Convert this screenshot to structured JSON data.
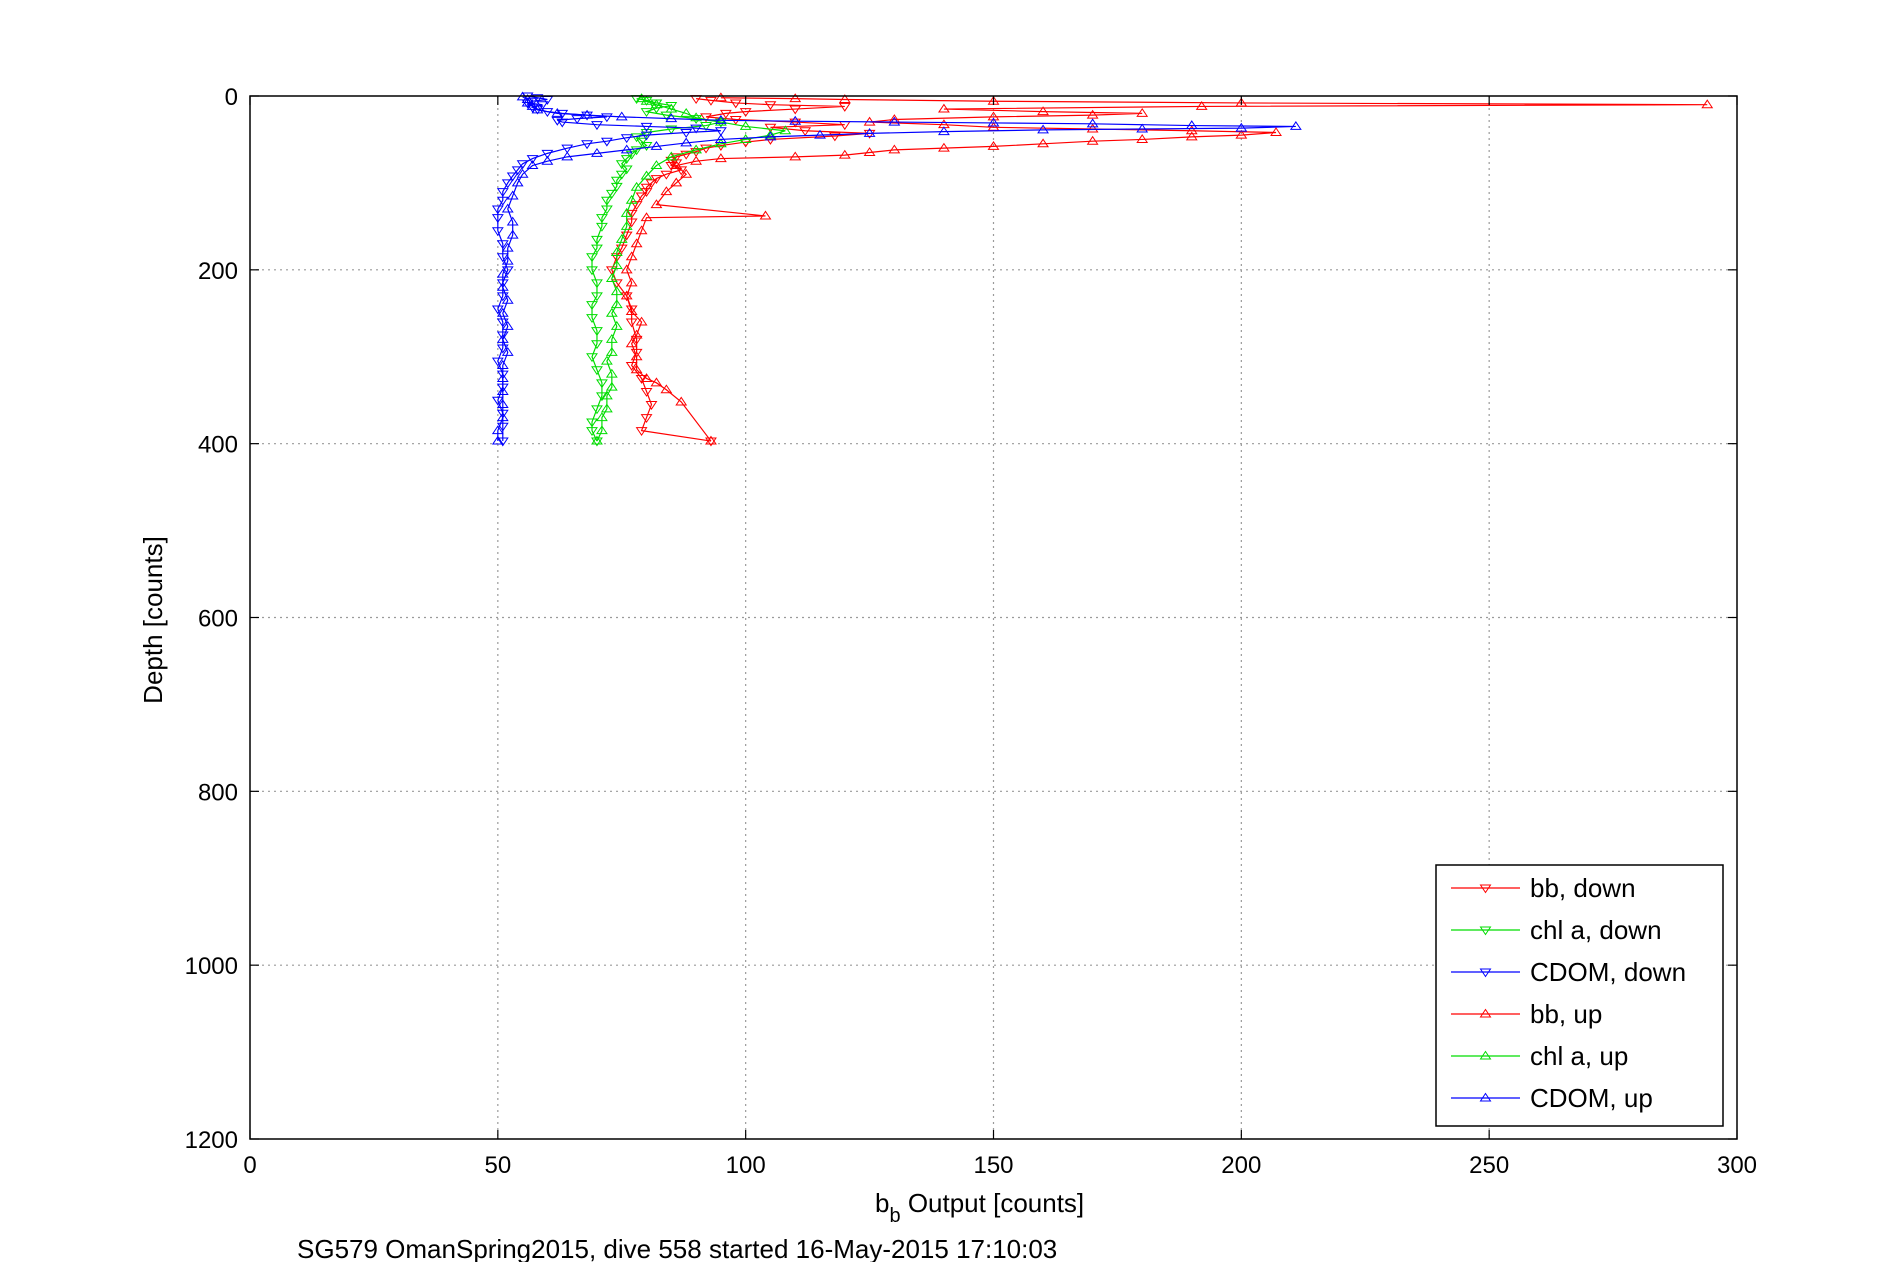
{
  "chart_data": {
    "type": "line",
    "xlabel_main": "b",
    "xlabel_sub": "b",
    "xlabel_rest": " Output [counts]",
    "ylabel": "Depth [counts]",
    "caption": "SG579 OmanSpring2015, dive 558 started 16-May-2015 17:10:03",
    "xlim": [
      0,
      300
    ],
    "ylim": [
      0,
      1200
    ],
    "y_reversed": true,
    "grid": true,
    "legend_position": "bottom-right",
    "x_ticks": [
      0,
      50,
      100,
      150,
      200,
      250,
      300
    ],
    "y_ticks": [
      0,
      200,
      400,
      600,
      800,
      1000,
      1200
    ],
    "series": [
      {
        "name": "bb, down",
        "color": "#ff0000",
        "marker": "triangle-down",
        "points": [
          [
            90,
            3
          ],
          [
            93,
            5
          ],
          [
            98,
            8
          ],
          [
            105,
            10
          ],
          [
            120,
            12
          ],
          [
            110,
            15
          ],
          [
            100,
            18
          ],
          [
            96,
            20
          ],
          [
            92,
            24
          ],
          [
            98,
            27
          ],
          [
            110,
            30
          ],
          [
            120,
            33
          ],
          [
            105,
            36
          ],
          [
            112,
            40
          ],
          [
            125,
            43
          ],
          [
            118,
            46
          ],
          [
            105,
            50
          ],
          [
            100,
            53
          ],
          [
            95,
            57
          ],
          [
            92,
            60
          ],
          [
            90,
            64
          ],
          [
            88,
            67
          ],
          [
            86,
            70
          ],
          [
            85,
            74
          ],
          [
            86,
            77
          ],
          [
            85,
            80
          ],
          [
            87,
            85
          ],
          [
            84,
            90
          ],
          [
            82,
            95
          ],
          [
            81,
            100
          ],
          [
            80,
            105
          ],
          [
            80,
            110
          ],
          [
            79,
            115
          ],
          [
            78,
            125
          ],
          [
            77,
            135
          ],
          [
            77,
            145
          ],
          [
            76,
            160
          ],
          [
            75,
            175
          ],
          [
            74,
            185
          ],
          [
            73,
            200
          ],
          [
            74,
            215
          ],
          [
            76,
            230
          ],
          [
            77,
            245
          ],
          [
            77,
            260
          ],
          [
            78,
            280
          ],
          [
            78,
            295
          ],
          [
            77,
            310
          ],
          [
            79,
            325
          ],
          [
            80,
            340
          ],
          [
            81,
            355
          ],
          [
            80,
            370
          ],
          [
            79,
            385
          ],
          [
            93,
            397
          ]
        ]
      },
      {
        "name": "chl a, down",
        "color": "#00dd00",
        "marker": "triangle-down",
        "points": [
          [
            78,
            3
          ],
          [
            80,
            5
          ],
          [
            82,
            8
          ],
          [
            85,
            11
          ],
          [
            82,
            14
          ],
          [
            80,
            18
          ],
          [
            84,
            22
          ],
          [
            90,
            26
          ],
          [
            95,
            30
          ],
          [
            92,
            34
          ],
          [
            85,
            38
          ],
          [
            80,
            42
          ],
          [
            78,
            47
          ],
          [
            79,
            52
          ],
          [
            80,
            57
          ],
          [
            78,
            62
          ],
          [
            77,
            67
          ],
          [
            76,
            72
          ],
          [
            75,
            78
          ],
          [
            76,
            84
          ],
          [
            75,
            90
          ],
          [
            74,
            97
          ],
          [
            74,
            104
          ],
          [
            73,
            112
          ],
          [
            72,
            120
          ],
          [
            72,
            130
          ],
          [
            71,
            140
          ],
          [
            71,
            150
          ],
          [
            70,
            165
          ],
          [
            70,
            175
          ],
          [
            69,
            185
          ],
          [
            69,
            200
          ],
          [
            70,
            215
          ],
          [
            70,
            230
          ],
          [
            69,
            240
          ],
          [
            69,
            255
          ],
          [
            70,
            270
          ],
          [
            70,
            285
          ],
          [
            69,
            300
          ],
          [
            70,
            315
          ],
          [
            71,
            330
          ],
          [
            71,
            345
          ],
          [
            70,
            360
          ],
          [
            69,
            375
          ],
          [
            69,
            385
          ],
          [
            70,
            397
          ]
        ]
      },
      {
        "name": "CDOM, down",
        "color": "#0000ff",
        "marker": "triangle-down",
        "points": [
          [
            56,
            0
          ],
          [
            58,
            2
          ],
          [
            60,
            4
          ],
          [
            57,
            6
          ],
          [
            56,
            8
          ],
          [
            59,
            10
          ],
          [
            57,
            13
          ],
          [
            58,
            15
          ],
          [
            60,
            18
          ],
          [
            63,
            20
          ],
          [
            68,
            22
          ],
          [
            72,
            24
          ],
          [
            66,
            26
          ],
          [
            62,
            28
          ],
          [
            63,
            30
          ],
          [
            70,
            33
          ],
          [
            80,
            35
          ],
          [
            90,
            37
          ],
          [
            95,
            40
          ],
          [
            88,
            42
          ],
          [
            80,
            45
          ],
          [
            76,
            48
          ],
          [
            72,
            52
          ],
          [
            68,
            55
          ],
          [
            64,
            60
          ],
          [
            60,
            66
          ],
          [
            57,
            72
          ],
          [
            55,
            78
          ],
          [
            54,
            85
          ],
          [
            53,
            92
          ],
          [
            52,
            100
          ],
          [
            51,
            110
          ],
          [
            51,
            120
          ],
          [
            50,
            130
          ],
          [
            50,
            140
          ],
          [
            50,
            155
          ],
          [
            51,
            170
          ],
          [
            51,
            185
          ],
          [
            52,
            200
          ],
          [
            51,
            215
          ],
          [
            51,
            230
          ],
          [
            50,
            245
          ],
          [
            51,
            260
          ],
          [
            51,
            275
          ],
          [
            51,
            290
          ],
          [
            50,
            305
          ],
          [
            51,
            320
          ],
          [
            51,
            335
          ],
          [
            50,
            350
          ],
          [
            51,
            365
          ],
          [
            51,
            380
          ],
          [
            51,
            397
          ]
        ]
      },
      {
        "name": "bb, up",
        "color": "#ff0000",
        "marker": "triangle-up",
        "points": [
          [
            93,
            397
          ],
          [
            87,
            352
          ],
          [
            84,
            338
          ],
          [
            82,
            330
          ],
          [
            80,
            325
          ],
          [
            78,
            315
          ],
          [
            78,
            300
          ],
          [
            77,
            285
          ],
          [
            78,
            275
          ],
          [
            79,
            260
          ],
          [
            77,
            248
          ],
          [
            76,
            230
          ],
          [
            77,
            215
          ],
          [
            76,
            200
          ],
          [
            77,
            185
          ],
          [
            78,
            170
          ],
          [
            79,
            155
          ],
          [
            80,
            140
          ],
          [
            104,
            138
          ],
          [
            82,
            125
          ],
          [
            84,
            110
          ],
          [
            86,
            100
          ],
          [
            88,
            90
          ],
          [
            86,
            80
          ],
          [
            90,
            75
          ],
          [
            95,
            72
          ],
          [
            110,
            70
          ],
          [
            120,
            68
          ],
          [
            125,
            65
          ],
          [
            130,
            62
          ],
          [
            140,
            60
          ],
          [
            150,
            58
          ],
          [
            160,
            55
          ],
          [
            170,
            52
          ],
          [
            180,
            50
          ],
          [
            190,
            47
          ],
          [
            200,
            45
          ],
          [
            207,
            42
          ],
          [
            190,
            40
          ],
          [
            170,
            38
          ],
          [
            150,
            36
          ],
          [
            140,
            33
          ],
          [
            125,
            30
          ],
          [
            130,
            27
          ],
          [
            150,
            24
          ],
          [
            170,
            22
          ],
          [
            180,
            20
          ],
          [
            160,
            18
          ],
          [
            140,
            15
          ],
          [
            192,
            12
          ],
          [
            294,
            10
          ],
          [
            200,
            8
          ],
          [
            150,
            6
          ],
          [
            120,
            4
          ],
          [
            110,
            3
          ],
          [
            95,
            2
          ]
        ]
      },
      {
        "name": "chl a, up",
        "color": "#00dd00",
        "marker": "triangle-up",
        "points": [
          [
            70,
            397
          ],
          [
            71,
            385
          ],
          [
            71,
            370
          ],
          [
            72,
            360
          ],
          [
            72,
            345
          ],
          [
            73,
            335
          ],
          [
            73,
            320
          ],
          [
            72,
            305
          ],
          [
            73,
            295
          ],
          [
            73,
            280
          ],
          [
            74,
            265
          ],
          [
            73,
            250
          ],
          [
            74,
            240
          ],
          [
            74,
            225
          ],
          [
            73,
            210
          ],
          [
            74,
            195
          ],
          [
            74,
            180
          ],
          [
            75,
            165
          ],
          [
            76,
            150
          ],
          [
            76,
            135
          ],
          [
            77,
            120
          ],
          [
            78,
            105
          ],
          [
            80,
            92
          ],
          [
            82,
            80
          ],
          [
            85,
            70
          ],
          [
            90,
            62
          ],
          [
            95,
            55
          ],
          [
            100,
            50
          ],
          [
            105,
            45
          ],
          [
            108,
            40
          ],
          [
            100,
            35
          ],
          [
            95,
            30
          ],
          [
            90,
            25
          ],
          [
            88,
            20
          ],
          [
            85,
            15
          ],
          [
            82,
            10
          ],
          [
            80,
            6
          ],
          [
            79,
            3
          ]
        ]
      },
      {
        "name": "CDOM, up",
        "color": "#0000ff",
        "marker": "triangle-up",
        "points": [
          [
            50,
            397
          ],
          [
            50,
            385
          ],
          [
            51,
            370
          ],
          [
            51,
            355
          ],
          [
            51,
            340
          ],
          [
            51,
            325
          ],
          [
            51,
            310
          ],
          [
            52,
            295
          ],
          [
            51,
            280
          ],
          [
            52,
            265
          ],
          [
            51,
            250
          ],
          [
            52,
            235
          ],
          [
            51,
            220
          ],
          [
            51,
            205
          ],
          [
            52,
            190
          ],
          [
            52,
            175
          ],
          [
            53,
            160
          ],
          [
            53,
            145
          ],
          [
            52,
            130
          ],
          [
            53,
            115
          ],
          [
            54,
            100
          ],
          [
            55,
            90
          ],
          [
            57,
            80
          ],
          [
            60,
            75
          ],
          [
            64,
            70
          ],
          [
            70,
            66
          ],
          [
            76,
            62
          ],
          [
            82,
            58
          ],
          [
            88,
            54
          ],
          [
            95,
            50
          ],
          [
            105,
            47
          ],
          [
            115,
            45
          ],
          [
            125,
            43
          ],
          [
            140,
            41
          ],
          [
            160,
            39
          ],
          [
            180,
            38
          ],
          [
            200,
            37
          ],
          [
            211,
            35
          ],
          [
            190,
            34
          ],
          [
            170,
            32
          ],
          [
            150,
            31
          ],
          [
            130,
            30
          ],
          [
            110,
            29
          ],
          [
            95,
            28
          ],
          [
            85,
            26
          ],
          [
            75,
            24
          ],
          [
            68,
            22
          ],
          [
            62,
            20
          ],
          [
            58,
            16
          ],
          [
            57,
            12
          ],
          [
            56,
            8
          ],
          [
            56,
            4
          ],
          [
            55,
            1
          ]
        ]
      }
    ]
  }
}
